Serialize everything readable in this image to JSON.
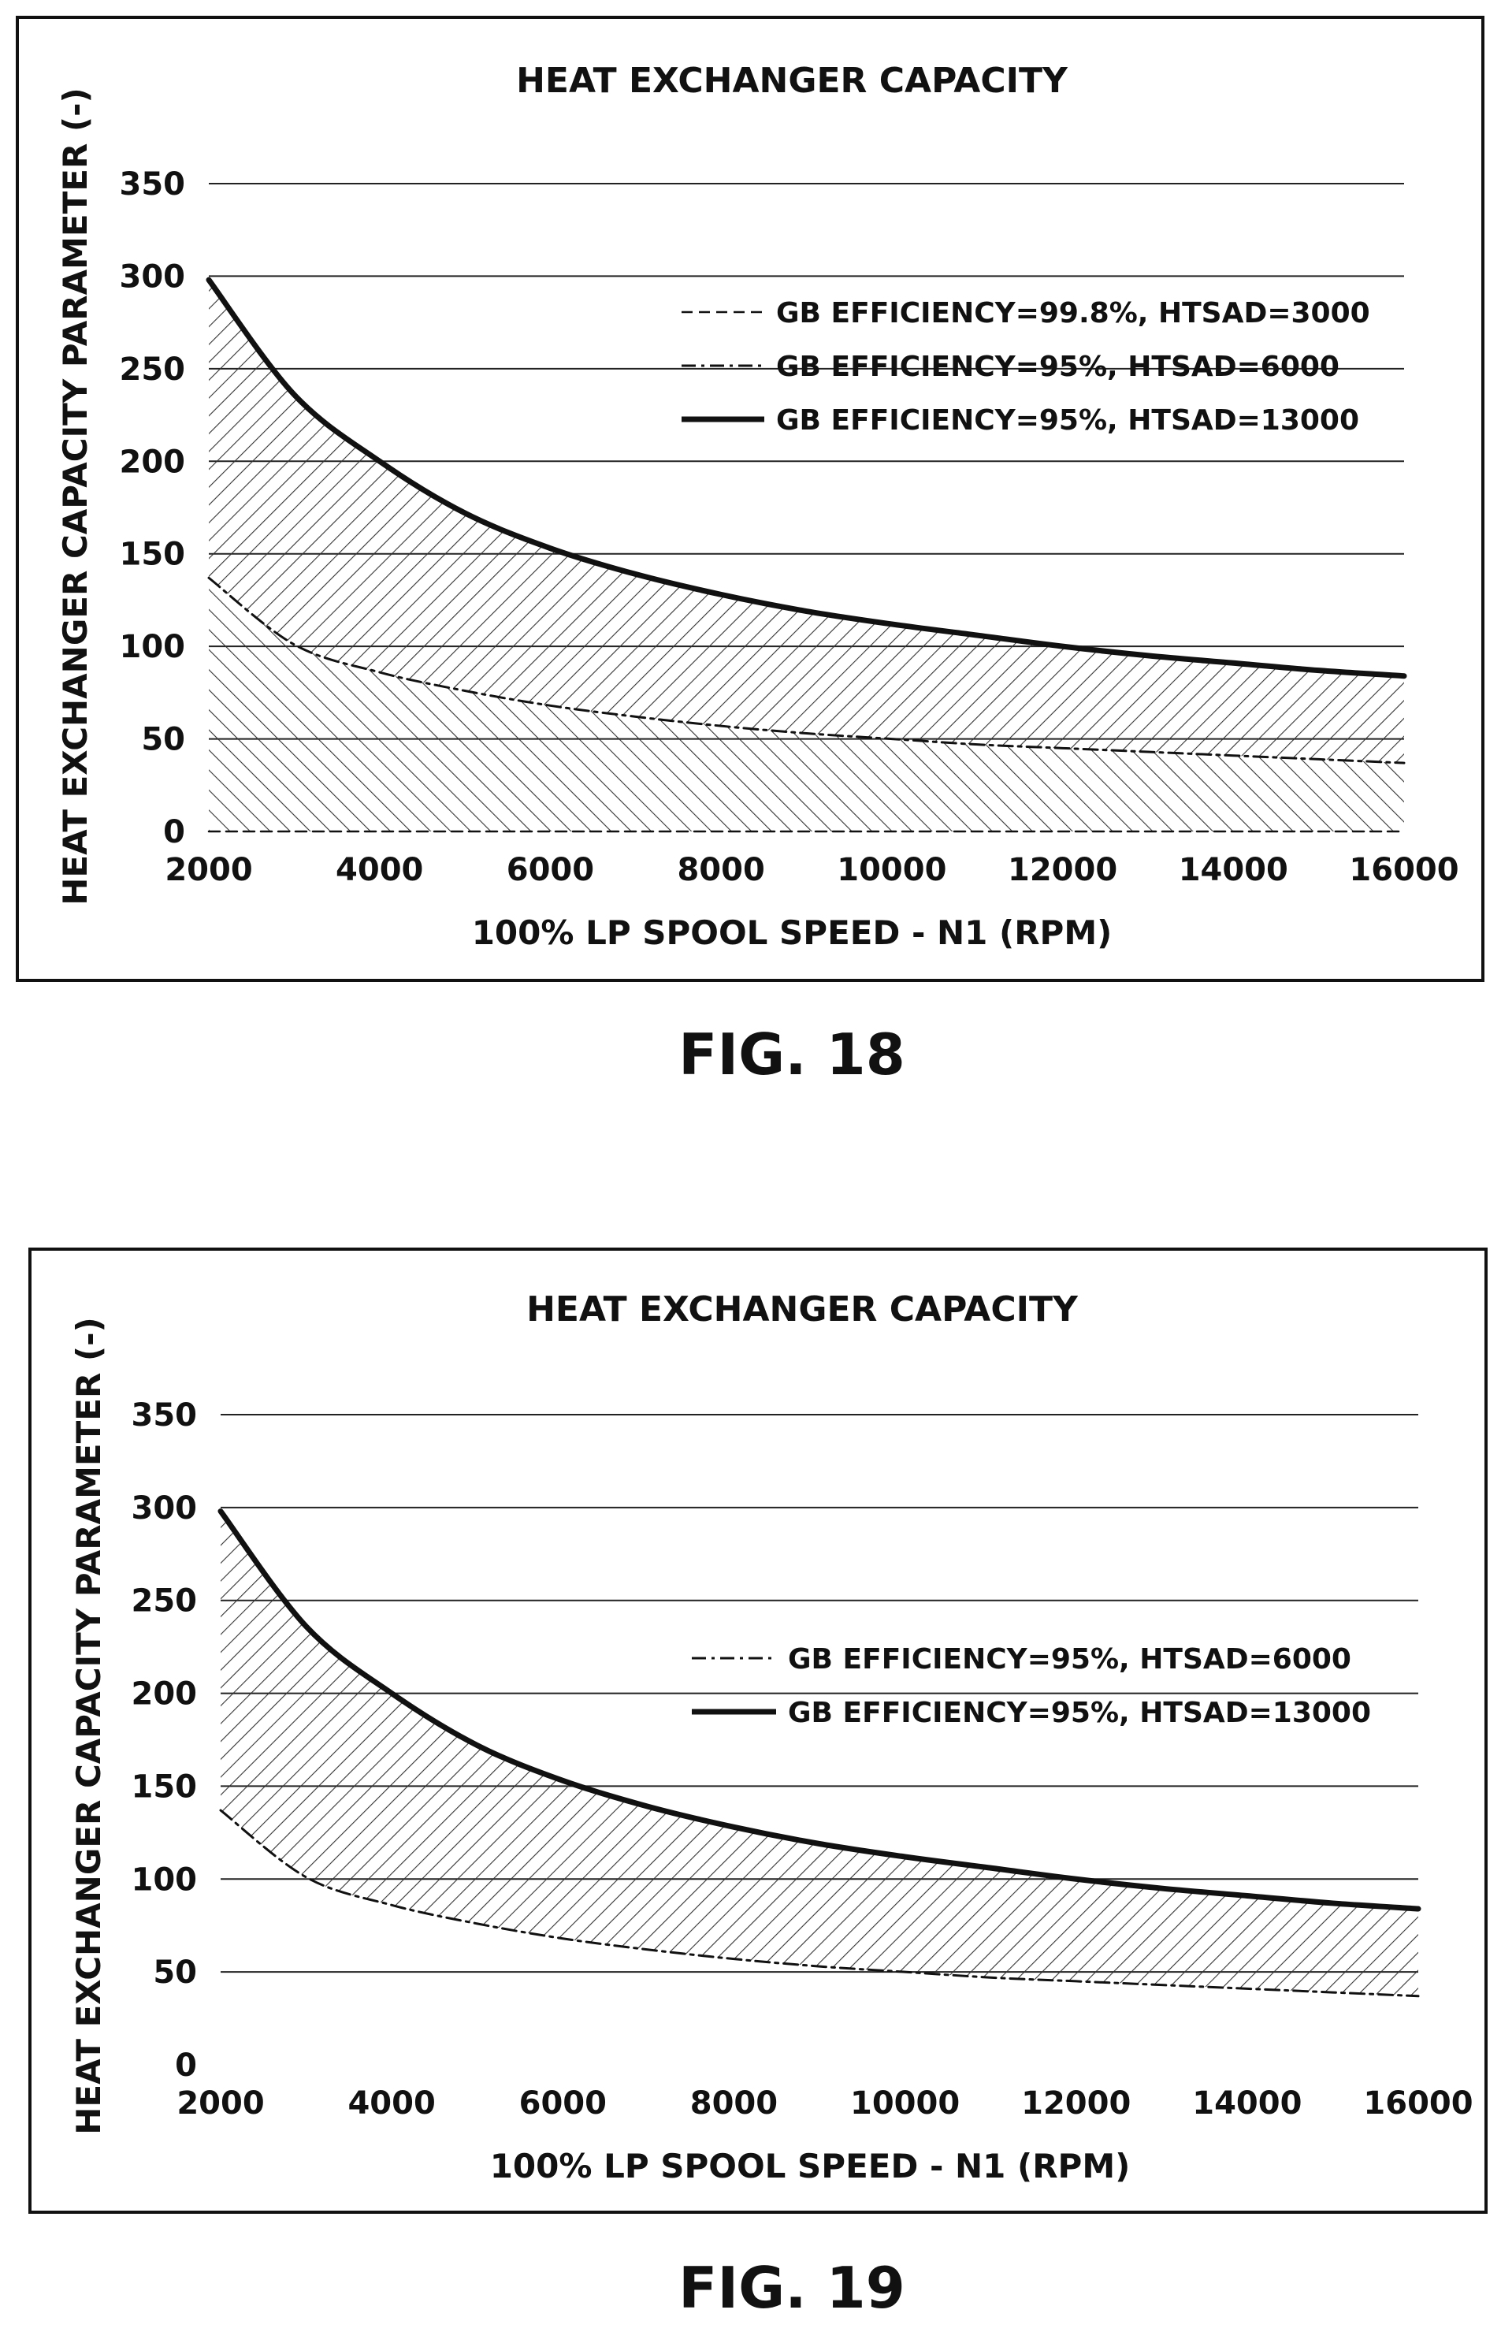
{
  "chart_data": [
    {
      "figure_label": "FIG. 18",
      "type": "area",
      "title": "HEAT EXCHANGER CAPACITY",
      "xlabel": "100% LP SPOOL SPEED - N1 (RPM)",
      "ylabel": "HEAT EXCHANGER CAPACITY PARAMETER (-)",
      "xlim": [
        2000,
        16000
      ],
      "ylim": [
        0,
        350
      ],
      "x_ticks": [
        "2000",
        "4000",
        "6000",
        "8000",
        "10000",
        "12000",
        "14000",
        "16000"
      ],
      "y_ticks": [
        "0",
        "50",
        "100",
        "150",
        "200",
        "250",
        "300",
        "350"
      ],
      "grid": true,
      "legend_position": "top-right",
      "x": [
        2000,
        3000,
        4000,
        5000,
        6000,
        7000,
        8000,
        9000,
        10000,
        11000,
        12000,
        13000,
        14000,
        15000,
        16000
      ],
      "series": [
        {
          "name": "GB EFFICIENCY=99.8%, HTSAD=3000",
          "style": "dashed",
          "values": [
            0,
            0,
            0,
            0,
            0,
            0,
            0,
            0,
            0,
            0,
            0,
            0,
            0,
            0,
            0
          ]
        },
        {
          "name": "GB EFFICIENCY=95%, HTSAD=6000",
          "style": "dash-dot",
          "values": [
            137,
            101,
            86,
            76,
            68,
            62,
            57,
            53,
            50,
            47,
            45,
            43,
            41,
            39,
            37
          ]
        },
        {
          "name": "GB EFFICIENCY=95%, HTSAD=13000",
          "style": "solid",
          "values": [
            298,
            236,
            200,
            172,
            153,
            139,
            128,
            119,
            112,
            106,
            100,
            95,
            91,
            87,
            84
          ]
        }
      ]
    },
    {
      "figure_label": "FIG. 19",
      "type": "area",
      "title": "HEAT EXCHANGER CAPACITY",
      "xlabel": "100% LP SPOOL SPEED - N1 (RPM)",
      "ylabel": "HEAT EXCHANGER CAPACITY PARAMETER (-)",
      "xlim": [
        2000,
        16000
      ],
      "ylim": [
        0,
        350
      ],
      "x_ticks": [
        "2000",
        "4000",
        "6000",
        "8000",
        "10000",
        "12000",
        "14000",
        "16000"
      ],
      "y_ticks": [
        "0",
        "50",
        "100",
        "150",
        "200",
        "250",
        "300",
        "350"
      ],
      "grid": true,
      "legend_position": "top-right",
      "x": [
        2000,
        3000,
        4000,
        5000,
        6000,
        7000,
        8000,
        9000,
        10000,
        11000,
        12000,
        13000,
        14000,
        15000,
        16000
      ],
      "series": [
        {
          "name": "GB EFFICIENCY=95%, HTSAD=6000",
          "style": "dash-dot",
          "values": [
            137,
            101,
            86,
            76,
            68,
            62,
            57,
            53,
            50,
            47,
            45,
            43,
            41,
            39,
            37
          ]
        },
        {
          "name": "GB EFFICIENCY=95%, HTSAD=13000",
          "style": "solid",
          "values": [
            298,
            236,
            200,
            172,
            153,
            139,
            128,
            119,
            112,
            106,
            100,
            95,
            91,
            87,
            84
          ]
        }
      ]
    }
  ]
}
